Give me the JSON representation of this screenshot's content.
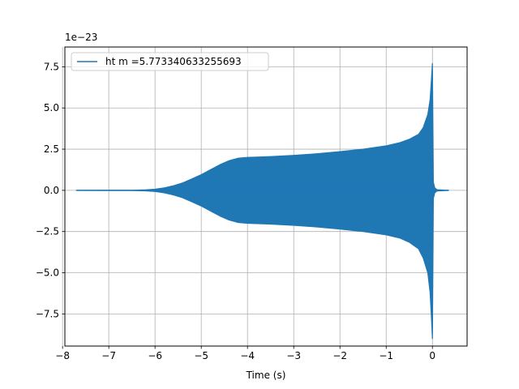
{
  "chart_data": {
    "type": "line",
    "xlabel": "Time (s)",
    "ylabel": "",
    "title": "",
    "offset_label": "1e−23",
    "xlim": [
      -7.95,
      0.75
    ],
    "ylim": [
      -9.45,
      8.7
    ],
    "x_ticks": [
      -8,
      -7,
      -6,
      -5,
      -4,
      -3,
      -2,
      -1,
      0
    ],
    "x_tick_labels": [
      "−8",
      "−7",
      "−6",
      "−5",
      "−4",
      "−3",
      "−2",
      "−1",
      "0"
    ],
    "y_ticks": [
      -7.5,
      -5.0,
      -2.5,
      0.0,
      2.5,
      5.0,
      7.5
    ],
    "y_tick_labels": [
      "−7.5",
      "−5.0",
      "−2.5",
      "0.0",
      "2.5",
      "5.0",
      "7.5"
    ],
    "grid": true,
    "legend_position": "top-left",
    "series": [
      {
        "name": "ht m =5.773340633255693",
        "color": "#1f77b4",
        "envelope_x": [
          -7.7,
          -6.5,
          -6.2,
          -6.0,
          -5.8,
          -5.6,
          -5.4,
          -5.2,
          -5.0,
          -4.8,
          -4.6,
          -4.4,
          -4.2,
          -4.0,
          -3.8,
          -3.5,
          -3.0,
          -2.5,
          -2.0,
          -1.5,
          -1.0,
          -0.7,
          -0.5,
          -0.3,
          -0.2,
          -0.1,
          -0.05,
          -0.02,
          0.0,
          0.02,
          0.05,
          0.1,
          0.35
        ],
        "envelope_upper": [
          0.0,
          0.01,
          0.03,
          0.07,
          0.15,
          0.28,
          0.45,
          0.7,
          0.95,
          1.25,
          1.55,
          1.8,
          1.95,
          2.0,
          2.02,
          2.05,
          2.12,
          2.22,
          2.35,
          2.5,
          2.7,
          2.9,
          3.1,
          3.4,
          3.8,
          4.6,
          5.5,
          6.8,
          7.7,
          0.5,
          0.15,
          0.04,
          0.0
        ],
        "envelope_lower": [
          0.0,
          -0.01,
          -0.03,
          -0.07,
          -0.15,
          -0.28,
          -0.45,
          -0.7,
          -0.95,
          -1.25,
          -1.55,
          -1.8,
          -1.95,
          -2.0,
          -2.02,
          -2.05,
          -2.12,
          -2.22,
          -2.35,
          -2.5,
          -2.7,
          -2.9,
          -3.15,
          -3.55,
          -4.1,
          -5.0,
          -6.2,
          -7.8,
          -9.0,
          -0.5,
          -0.15,
          -0.04,
          0.0
        ]
      }
    ]
  }
}
